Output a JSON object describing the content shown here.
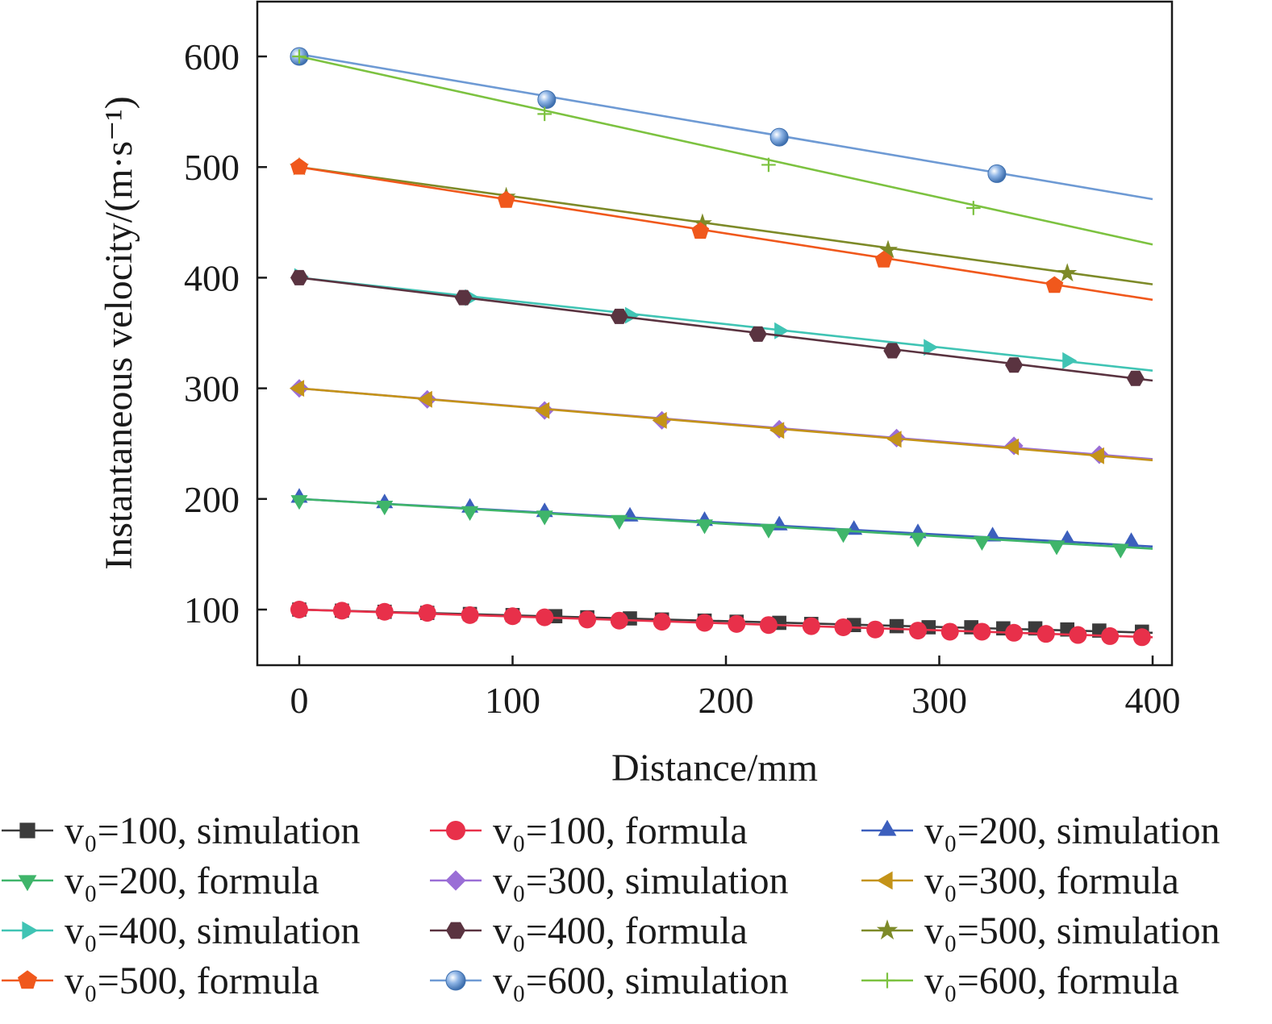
{
  "chart_data": {
    "type": "line",
    "title": "",
    "xlabel": "Distance/mm",
    "ylabel": "Instantaneous velocity/(m·s⁻¹)",
    "xlim": [
      -20,
      410
    ],
    "ylim": [
      50,
      650
    ],
    "xticks": [
      "0",
      "100",
      "200",
      "300",
      "400"
    ],
    "yticks": [
      "100",
      "200",
      "300",
      "400",
      "500",
      "600"
    ],
    "grid": false,
    "legend_position": "bottom",
    "series": [
      {
        "name": "v₀=100, simulation",
        "color": "#3b3b3b",
        "marker": "square",
        "line_y": [
          100,
          79
        ],
        "marker_x": [
          0,
          20,
          40,
          60,
          80,
          100,
          120,
          135,
          155,
          170,
          190,
          205,
          225,
          240,
          260,
          280,
          295,
          315,
          330,
          345,
          360,
          375,
          395
        ],
        "marker_y": [
          100,
          99,
          98,
          97,
          96,
          95,
          94,
          93,
          92,
          91,
          90,
          89,
          88,
          87,
          86,
          85,
          84,
          84,
          83,
          83,
          82,
          81,
          80
        ]
      },
      {
        "name": "v₀=100, formula",
        "color": "#e8304a",
        "marker": "circle",
        "line_y": [
          100,
          75
        ],
        "marker_x": [
          0,
          20,
          40,
          60,
          80,
          100,
          115,
          135,
          150,
          170,
          190,
          205,
          220,
          240,
          255,
          270,
          290,
          305,
          320,
          335,
          350,
          365,
          380,
          395
        ],
        "marker_y": [
          100,
          99,
          98,
          97,
          95,
          94,
          93,
          91,
          90,
          89,
          88,
          87,
          86,
          85,
          84,
          82,
          81,
          80,
          80,
          79,
          78,
          77,
          76,
          75
        ]
      },
      {
        "name": "v₀=200, simulation",
        "color": "#3c5fbd",
        "marker": "triangle-up",
        "line_y": [
          200,
          157
        ],
        "marker_x": [
          0,
          40,
          80,
          115,
          155,
          190,
          225,
          260,
          290,
          325,
          360,
          390
        ],
        "marker_y": [
          201,
          196,
          192,
          188,
          184,
          180,
          176,
          172,
          169,
          166,
          163,
          161
        ]
      },
      {
        "name": "v₀=200, formula",
        "color": "#3fb56a",
        "marker": "triangle-down",
        "line_y": [
          200,
          155
        ],
        "marker_x": [
          0,
          40,
          80,
          115,
          150,
          190,
          220,
          255,
          290,
          320,
          355,
          385
        ],
        "marker_y": [
          199,
          194,
          189,
          185,
          181,
          177,
          173,
          169,
          165,
          162,
          158,
          155
        ]
      },
      {
        "name": "v₀=300, simulation",
        "color": "#9a6ed6",
        "marker": "diamond",
        "line_y": [
          300,
          236
        ],
        "marker_x": [
          0,
          60,
          115,
          170,
          225,
          280,
          335,
          375
        ],
        "marker_y": [
          300,
          290,
          280,
          271,
          263,
          255,
          248,
          240
        ]
      },
      {
        "name": "v₀=300, formula",
        "color": "#c49318",
        "marker": "triangle-left",
        "line_y": [
          300,
          235
        ],
        "marker_x": [
          0,
          60,
          115,
          170,
          225,
          280,
          335,
          375
        ],
        "marker_y": [
          300,
          290,
          280,
          271,
          262,
          254,
          247,
          239
        ]
      },
      {
        "name": "v₀=400, simulation",
        "color": "#40c4b4",
        "marker": "triangle-right",
        "line_y": [
          400,
          316
        ],
        "marker_x": [
          0,
          80,
          155,
          225,
          295,
          360
        ],
        "marker_y": [
          401,
          382,
          366,
          352,
          337,
          325
        ]
      },
      {
        "name": "v₀=400, formula",
        "color": "#5a3340",
        "marker": "hexagon",
        "line_y": [
          400,
          307
        ],
        "marker_x": [
          0,
          77,
          150,
          215,
          278,
          335,
          392
        ],
        "marker_y": [
          400,
          382,
          365,
          349,
          334,
          321,
          309
        ]
      },
      {
        "name": "v₀=500, simulation",
        "color": "#7d8a28",
        "marker": "star",
        "line_y": [
          500,
          394
        ],
        "marker_x": [
          0,
          97,
          189,
          276,
          360
        ],
        "marker_y": [
          500,
          473,
          449,
          425,
          404
        ]
      },
      {
        "name": "v₀=500, formula",
        "color": "#f0581c",
        "marker": "pentagon",
        "line_y": [
          500,
          380
        ],
        "marker_x": [
          0,
          97,
          188,
          274,
          354
        ],
        "marker_y": [
          500,
          470,
          442,
          416,
          393
        ]
      },
      {
        "name": "v₀=600, simulation",
        "color": "#6e9ad4",
        "marker": "sphere",
        "line_y": [
          602,
          471
        ],
        "marker_x": [
          0,
          116,
          225,
          327
        ],
        "marker_y": [
          600,
          561,
          527,
          494
        ]
      },
      {
        "name": "v₀=600, formula",
        "color": "#7cc240",
        "marker": "plus",
        "line_y": [
          600,
          430
        ],
        "marker_x": [
          0,
          115,
          220,
          316
        ],
        "marker_y": [
          600,
          548,
          502,
          463
        ]
      }
    ]
  }
}
